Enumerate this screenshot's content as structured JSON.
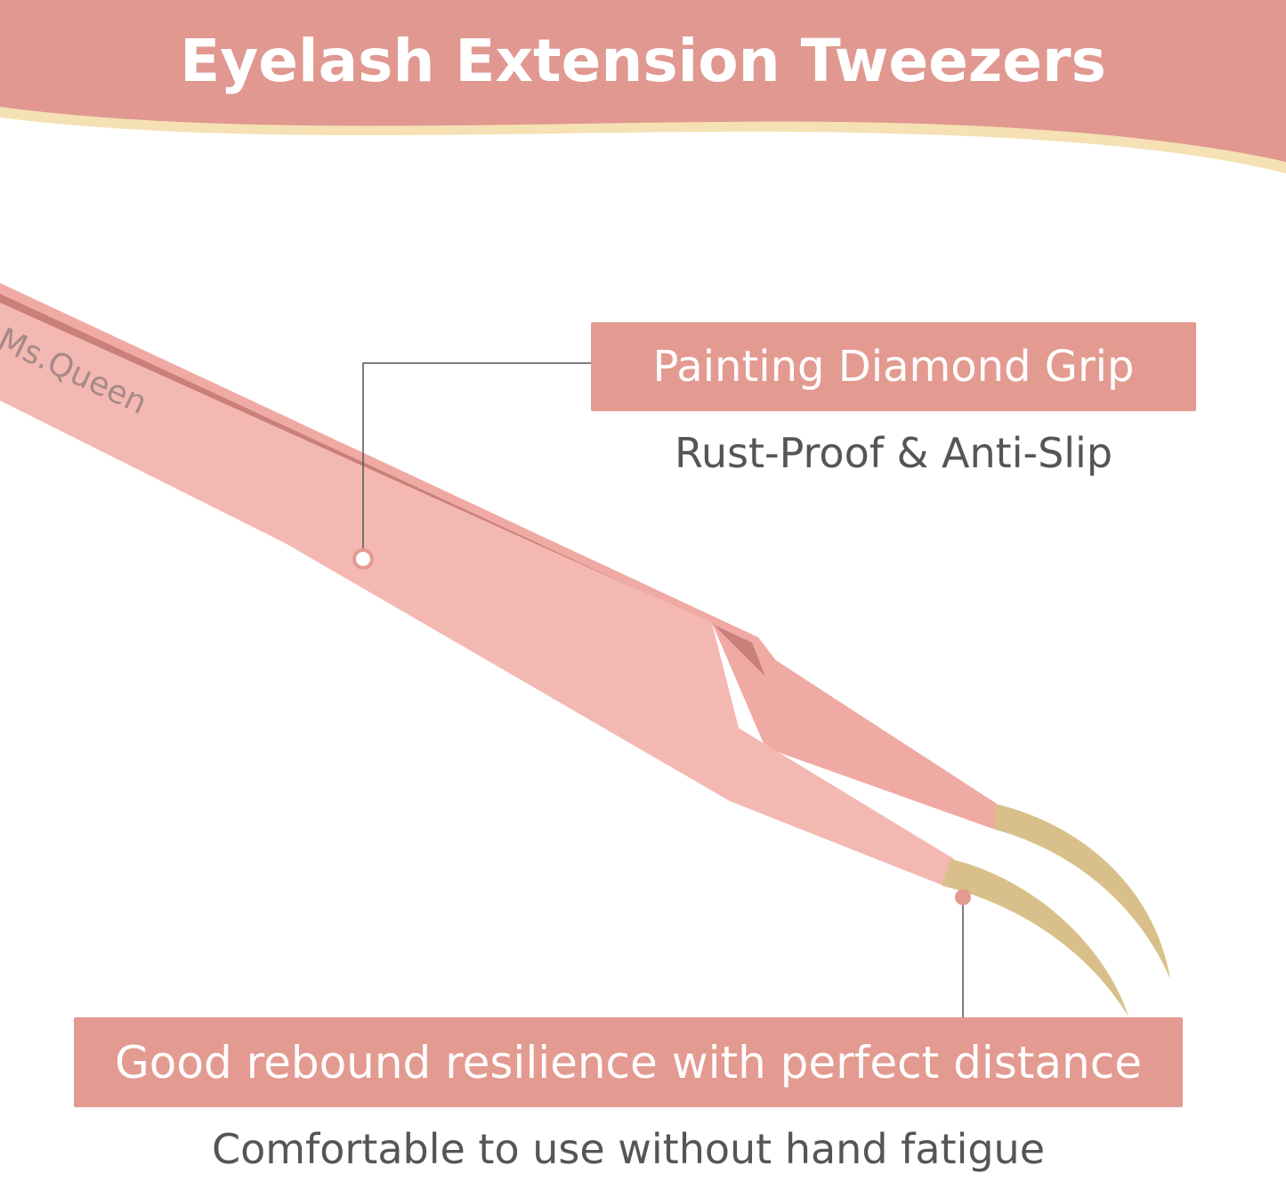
{
  "header": {
    "title": "Eyelash Extension Tweezers"
  },
  "product": {
    "brand_engraving": "Ms.Queen"
  },
  "callouts": [
    {
      "label": "Painting Diamond Grip",
      "caption": "Rust-Proof & Anti-Slip"
    },
    {
      "label": "Good rebound resilience with perfect distance",
      "caption": "Comfortable to use without hand fatigue"
    }
  ],
  "colors": {
    "header": "#e09890",
    "wave": "#f5e1b4",
    "label": "#e39a90",
    "tweezer": "#f3b3ad",
    "tip": "#d9c08a"
  }
}
